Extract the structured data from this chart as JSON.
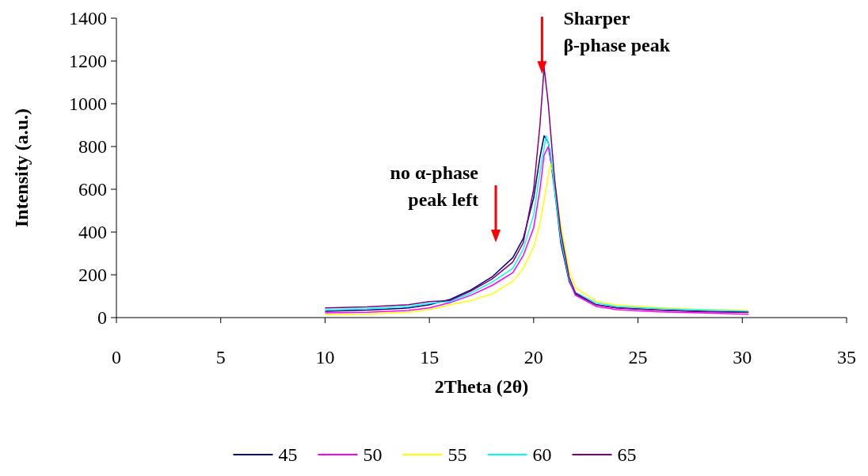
{
  "chart_data": {
    "type": "line",
    "xlabel": "2Theta (2θ)",
    "ylabel": "Intensity (a.u.)",
    "xlim": [
      0,
      35
    ],
    "xticks": [
      0,
      5,
      10,
      15,
      20,
      25,
      30,
      35
    ],
    "ylim": [
      0,
      1400
    ],
    "yticks": [
      0,
      200,
      400,
      600,
      800,
      1000,
      1200,
      1400
    ],
    "grid": false,
    "legend": "bottom",
    "annotations": [
      {
        "text": "Sharper β-phase peak",
        "x": 20.4,
        "y": 1140
      },
      "no α-phase peak left"
    ],
    "series": [
      {
        "name": "45",
        "color": "#000080",
        "x": [
          10,
          12,
          14,
          15,
          16,
          17,
          18,
          19,
          19.5,
          20,
          20.3,
          20.5,
          20.7,
          21,
          21.3,
          21.7,
          22,
          23,
          24,
          26,
          28,
          30.3
        ],
        "values": [
          30,
          35,
          45,
          60,
          85,
          130,
          190,
          280,
          370,
          560,
          750,
          850,
          820,
          600,
          350,
          170,
          110,
          60,
          45,
          35,
          30,
          25
        ]
      },
      {
        "name": "50",
        "color": "#ff00ff",
        "x": [
          10,
          12,
          14,
          15,
          16,
          17,
          18,
          19,
          19.5,
          20,
          20.3,
          20.5,
          20.7,
          21,
          21.3,
          21.7,
          22,
          23,
          24,
          26,
          28,
          30.3
        ],
        "values": [
          22,
          25,
          33,
          45,
          70,
          105,
          150,
          210,
          290,
          420,
          600,
          760,
          800,
          640,
          380,
          180,
          104,
          52,
          37,
          27,
          22,
          16
        ]
      },
      {
        "name": "55",
        "color": "#ffff00",
        "x": [
          10,
          12,
          14,
          15,
          16,
          17,
          18,
          19,
          19.5,
          20,
          20.3,
          20.5,
          20.8,
          21,
          21.3,
          21.7,
          22,
          23,
          24,
          26,
          28,
          30.3
        ],
        "values": [
          14,
          17,
          25,
          37,
          60,
          80,
          110,
          170,
          230,
          330,
          440,
          550,
          720,
          650,
          430,
          220,
          140,
          76,
          58,
          46,
          38,
          33
        ]
      },
      {
        "name": "60",
        "color": "#00ffff",
        "x": [
          10,
          12,
          14,
          15,
          16,
          17,
          18,
          19,
          19.5,
          20,
          20.3,
          20.6,
          20.8,
          21,
          21.3,
          21.7,
          22,
          23,
          24,
          26,
          28,
          30.3
        ],
        "values": [
          38,
          42,
          52,
          67,
          75,
          115,
          165,
          230,
          320,
          480,
          680,
          850,
          780,
          600,
          370,
          180,
          118,
          68,
          52,
          42,
          36,
          30
        ]
      },
      {
        "name": "65",
        "color": "#800080",
        "x": [
          10,
          12,
          14,
          15,
          16,
          17,
          18,
          19,
          19.5,
          20,
          20.3,
          20.5,
          20.7,
          21,
          21.3,
          21.7,
          22,
          23,
          24,
          26,
          28,
          30.3
        ],
        "values": [
          45,
          50,
          60,
          75,
          80,
          125,
          180,
          260,
          350,
          600,
          900,
          1170,
          1000,
          650,
          400,
          190,
          115,
          60,
          45,
          35,
          28,
          25
        ]
      }
    ]
  }
}
